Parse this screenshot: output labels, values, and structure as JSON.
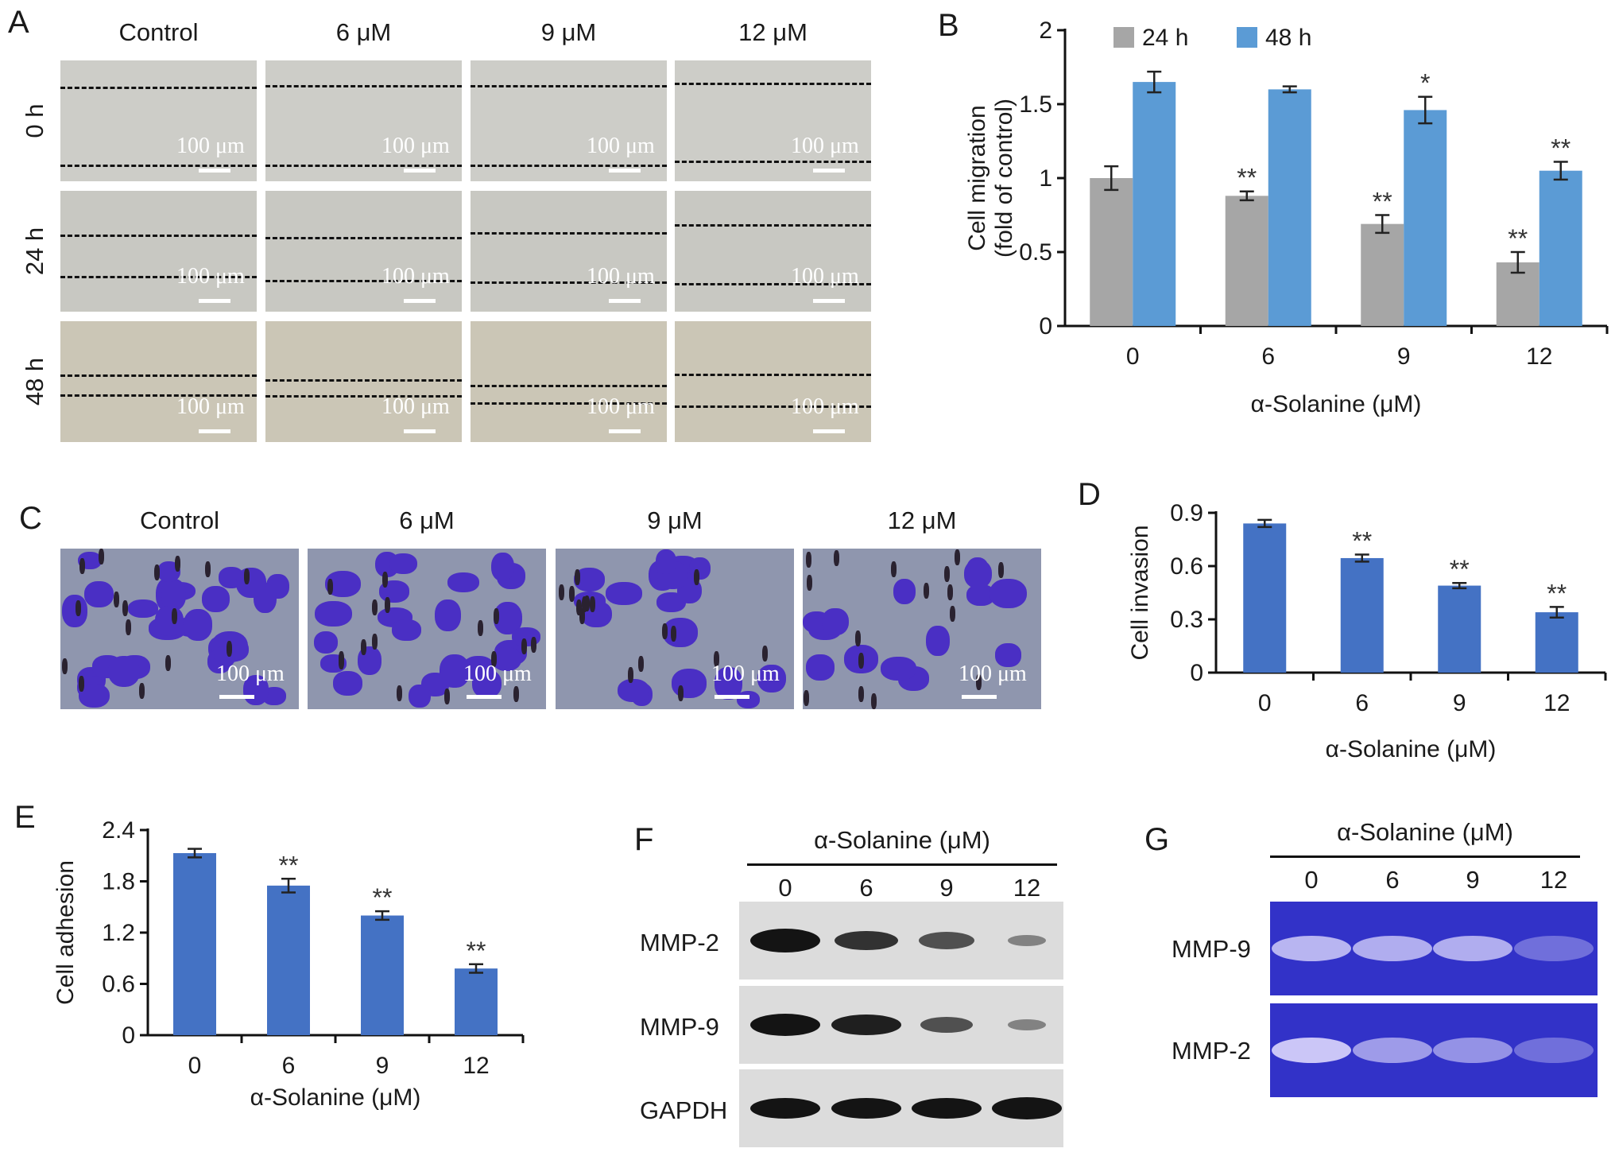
{
  "panels": {
    "A": {
      "label": "A",
      "columns": [
        "Control",
        "6 μM",
        "9 μM",
        "12 μM"
      ],
      "rows": [
        "0 h",
        "24 h",
        "48 h"
      ],
      "scale_text": "100 μm"
    },
    "B": {
      "label": "B"
    },
    "C": {
      "label": "C",
      "columns": [
        "Control",
        "6 μM",
        "9 μM",
        "12 μM"
      ],
      "scale_text": "100 μm"
    },
    "D": {
      "label": "D"
    },
    "E": {
      "label": "E"
    },
    "F": {
      "label": "F",
      "header": "α-Solanine (μM)",
      "lanes": [
        "0",
        "6",
        "9",
        "12"
      ],
      "rows": [
        "MMP-2",
        "MMP-9",
        "GAPDH"
      ]
    },
    "G": {
      "label": "G",
      "header": "α-Solanine (μM)",
      "lanes": [
        "0",
        "6",
        "9",
        "12"
      ],
      "rows": [
        "MMP-9",
        "MMP-2"
      ]
    }
  },
  "chart_data": [
    {
      "id": "B",
      "type": "bar",
      "categories": [
        "0",
        "6",
        "9",
        "12"
      ],
      "series": [
        {
          "name": "24 h",
          "color": "#a6a6a6",
          "values": [
            1.0,
            0.88,
            0.69,
            0.43
          ],
          "errors": [
            0.08,
            0.03,
            0.06,
            0.07
          ],
          "sig": [
            "",
            "**",
            "**",
            "**"
          ]
        },
        {
          "name": "48 h",
          "color": "#5b9bd5",
          "values": [
            1.65,
            1.6,
            1.46,
            1.05
          ],
          "errors": [
            0.07,
            0.02,
            0.09,
            0.06
          ],
          "sig": [
            "",
            "",
            "*",
            "**"
          ]
        }
      ],
      "xlabel": "α-Solanine (μM)",
      "ylabel": [
        "Cell migration",
        "(fold of control)"
      ],
      "ylim": [
        0,
        2
      ],
      "yticks": [
        "0",
        "0.5",
        "1",
        "1.5",
        "2"
      ],
      "legend": "top"
    },
    {
      "id": "D",
      "type": "bar",
      "categories": [
        "0",
        "6",
        "9",
        "12"
      ],
      "series": [
        {
          "color": "#4472c4",
          "values": [
            0.84,
            0.645,
            0.49,
            0.34
          ],
          "errors": [
            0.02,
            0.02,
            0.015,
            0.03
          ],
          "sig": [
            "",
            "**",
            "**",
            "**"
          ]
        }
      ],
      "xlabel": "α-Solanine (μM)",
      "ylabel": [
        "Cell invasion"
      ],
      "ylim": [
        0,
        0.9
      ],
      "yticks": [
        "0",
        "0.3",
        "0.6",
        "0.9"
      ]
    },
    {
      "id": "E",
      "type": "bar",
      "categories": [
        "0",
        "6",
        "9",
        "12"
      ],
      "series": [
        {
          "color": "#4472c4",
          "values": [
            2.13,
            1.75,
            1.4,
            0.78
          ],
          "errors": [
            0.05,
            0.08,
            0.05,
            0.05
          ],
          "sig": [
            "",
            "**",
            "**",
            "**"
          ]
        }
      ],
      "xlabel": "α-Solanine (μM)",
      "ylabel": [
        "Cell adhesion"
      ],
      "ylim": [
        0,
        2.4
      ],
      "yticks": [
        "0",
        "0.6",
        "1.2",
        "1.8",
        "2.4"
      ]
    }
  ]
}
